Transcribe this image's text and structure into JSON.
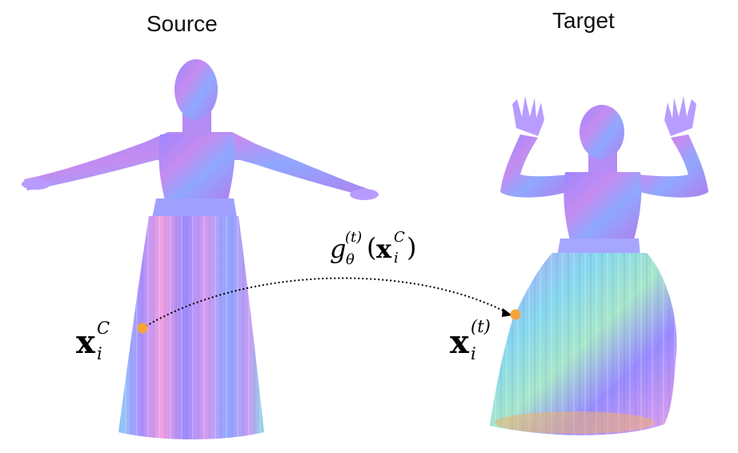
{
  "titles": {
    "source": "Source",
    "target": "Target"
  },
  "labels": {
    "source_point": {
      "base": "x",
      "sub": "i",
      "sup": "C"
    },
    "target_point": {
      "base": "x",
      "sub": "i",
      "sup": "(t)"
    },
    "mapping": {
      "func": "g",
      "sub": "θ",
      "sup": "(t)",
      "open": "(",
      "arg": "x",
      "arg_sub": "i",
      "arg_sup": "C",
      "close": ")"
    }
  },
  "colors": {
    "point": "#f4a53a",
    "arrow": "#000000",
    "skin_a": "#a98cff",
    "skin_b": "#ff9bd8",
    "skin_c": "#7fe0e6"
  },
  "icons": {
    "source_figure": "human-body-tpose-normal-map",
    "target_figure": "human-body-sitting-normal-map"
  }
}
